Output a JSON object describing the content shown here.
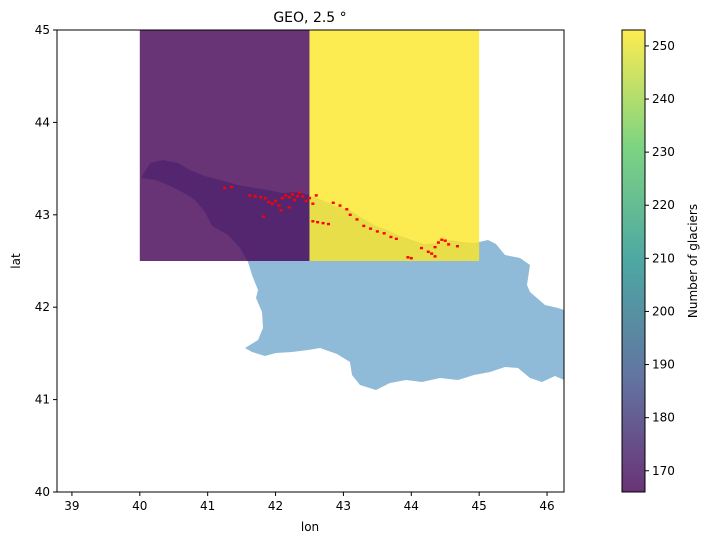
{
  "chart_data": {
    "type": "heatmap",
    "title": "GEO, 2.5 °",
    "xlabel": "lon",
    "ylabel": "lat",
    "xlim": [
      38.78,
      46.25
    ],
    "ylim": [
      40,
      45
    ],
    "xticks": [
      39,
      40,
      41,
      42,
      43,
      44,
      45,
      46
    ],
    "yticks": [
      40,
      41,
      42,
      43,
      44,
      45
    ],
    "grid": false,
    "cells": [
      {
        "lon_min": 40.0,
        "lon_max": 42.5,
        "lat_min": 42.5,
        "lat_max": 45.0,
        "value": 166
      },
      {
        "lon_min": 42.5,
        "lon_max": 45.0,
        "lat_min": 42.5,
        "lat_max": 45.0,
        "value": 253
      }
    ],
    "colorbar": {
      "label": "Number of glaciers",
      "min": 166,
      "max": 253,
      "ticks": [
        170,
        180,
        190,
        200,
        210,
        220,
        230,
        240,
        250
      ]
    },
    "glacier_points": [
      [
        41.25,
        43.29
      ],
      [
        41.35,
        43.3
      ],
      [
        41.62,
        43.21
      ],
      [
        41.7,
        43.2
      ],
      [
        41.78,
        43.19
      ],
      [
        41.85,
        43.18
      ],
      [
        41.9,
        43.14
      ],
      [
        41.95,
        43.12
      ],
      [
        41.82,
        42.98
      ],
      [
        42.0,
        43.15
      ],
      [
        42.05,
        43.1
      ],
      [
        42.1,
        43.18
      ],
      [
        42.15,
        43.21
      ],
      [
        42.2,
        43.19
      ],
      [
        42.25,
        43.22
      ],
      [
        42.28,
        43.16
      ],
      [
        42.32,
        43.2
      ],
      [
        42.35,
        43.24
      ],
      [
        42.4,
        43.2
      ],
      [
        42.45,
        43.15
      ],
      [
        42.5,
        43.18
      ],
      [
        42.55,
        43.12
      ],
      [
        42.6,
        43.21
      ],
      [
        42.08,
        43.05
      ],
      [
        42.2,
        43.08
      ],
      [
        42.55,
        42.93
      ],
      [
        42.62,
        42.92
      ],
      [
        42.7,
        42.91
      ],
      [
        42.78,
        42.9
      ],
      [
        42.85,
        43.13
      ],
      [
        42.95,
        43.1
      ],
      [
        43.05,
        43.06
      ],
      [
        43.1,
        43.0
      ],
      [
        43.2,
        42.95
      ],
      [
        43.3,
        42.88
      ],
      [
        43.4,
        42.85
      ],
      [
        43.5,
        42.82
      ],
      [
        43.6,
        42.8
      ],
      [
        43.7,
        42.76
      ],
      [
        43.78,
        42.74
      ],
      [
        43.95,
        42.54
      ],
      [
        44.0,
        42.53
      ],
      [
        44.15,
        42.64
      ],
      [
        44.25,
        42.6
      ],
      [
        44.35,
        42.65
      ],
      [
        44.4,
        42.7
      ],
      [
        44.45,
        42.73
      ],
      [
        44.5,
        42.72
      ],
      [
        44.55,
        42.68
      ],
      [
        44.68,
        42.66
      ],
      [
        44.3,
        42.58
      ],
      [
        44.35,
        42.55
      ]
    ]
  }
}
